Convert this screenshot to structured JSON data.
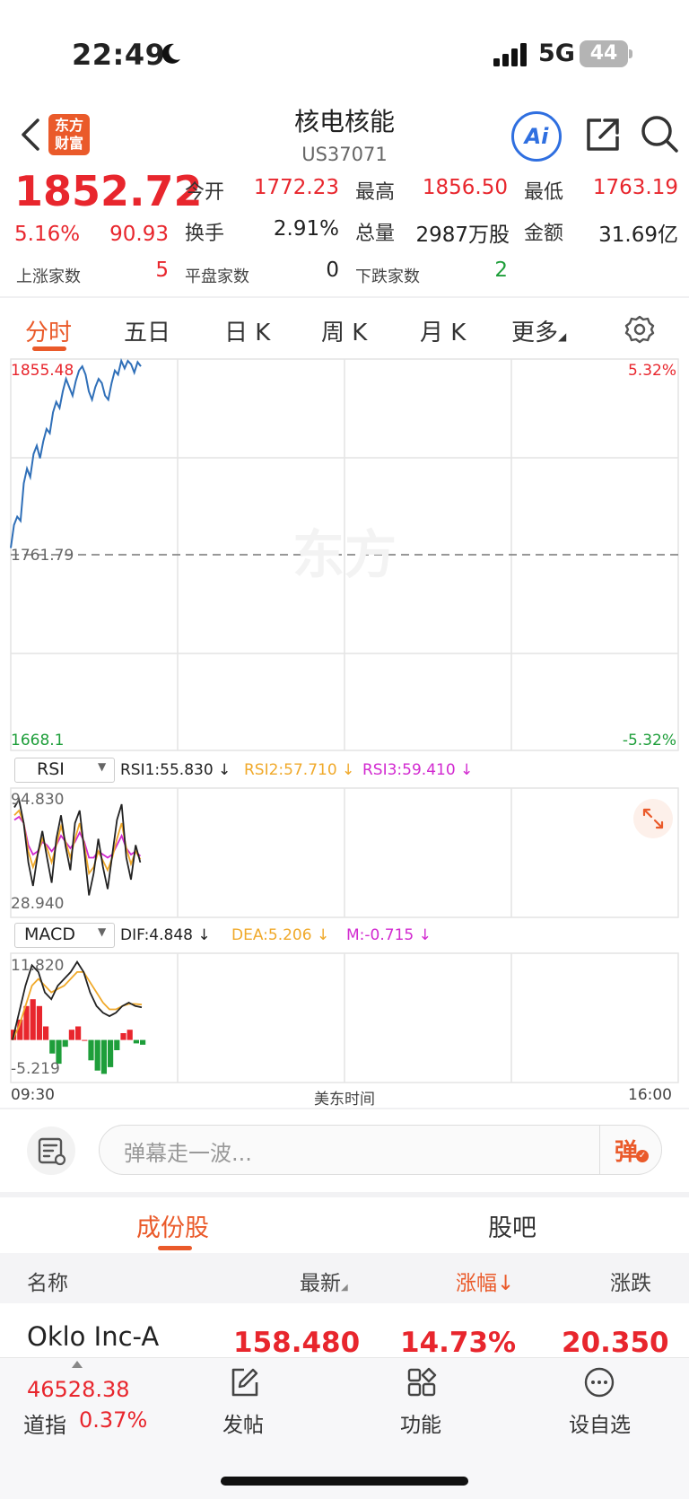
{
  "status": {
    "time": "22:49",
    "network": "5G",
    "battery": "44"
  },
  "header": {
    "title": "核电核能",
    "code": "US37071",
    "logo_line1": "东方",
    "logo_line2": "财富",
    "ai_label": "Ai"
  },
  "quote": {
    "price": "1852.72",
    "change_pct": "5.16%",
    "change": "90.93",
    "open_label": "今开",
    "open": "1772.23",
    "high_label": "最高",
    "high": "1856.50",
    "low_label": "最低",
    "low": "1763.19",
    "turnover_label": "换手",
    "turnover": "2.91%",
    "volume_label": "总量",
    "volume": "2987万股",
    "amount_label": "金额",
    "amount": "31.69亿",
    "up_label": "上涨家数",
    "up": "5",
    "flat_label": "平盘家数",
    "flat": "0",
    "down_label": "下跌家数",
    "down": "2"
  },
  "tabs": [
    "分时",
    "五日",
    "日 K",
    "周 K",
    "月 K",
    "更多"
  ],
  "chart_data": [
    {
      "type": "line",
      "name": "intraday",
      "y_max": 1855.48,
      "y_ref": 1761.79,
      "y_min": 1668.1,
      "pct_max": "5.32%",
      "pct_min": "-5.32%",
      "x_start": "09:30",
      "x_mid": "美东时间",
      "x_end": "16:00",
      "values": [
        1765,
        1776,
        1780,
        1778,
        1796,
        1803,
        1799,
        1810,
        1814,
        1808,
        1816,
        1822,
        1820,
        1830,
        1835,
        1832,
        1840,
        1846,
        1842,
        1838,
        1845,
        1850,
        1852,
        1848,
        1840,
        1836,
        1842,
        1846,
        1844,
        1838,
        1836,
        1844,
        1850,
        1848,
        1855,
        1851,
        1856,
        1853,
        1849,
        1854,
        1852
      ]
    },
    {
      "type": "line",
      "name": "rsi",
      "selector": "RSI",
      "y_max": "94.830",
      "y_min": "28.940",
      "rsi1_label": "RSI1:55.830 ↓",
      "rsi2_label": "RSI2:57.710 ↓",
      "rsi3_label": "RSI3:59.410 ↓",
      "rsi1": [
        90,
        95,
        80,
        55,
        40,
        60,
        75,
        58,
        42,
        70,
        85,
        65,
        50,
        80,
        88,
        62,
        34,
        48,
        70,
        52,
        38,
        60,
        82,
        92,
        58,
        44,
        66,
        55
      ],
      "rsi2": [
        85,
        88,
        80,
        62,
        52,
        60,
        70,
        64,
        55,
        66,
        78,
        68,
        58,
        70,
        80,
        66,
        48,
        52,
        62,
        56,
        50,
        58,
        70,
        80,
        64,
        54,
        62,
        57
      ],
      "rsi3": [
        82,
        84,
        80,
        66,
        60,
        62,
        68,
        66,
        62,
        66,
        72,
        68,
        64,
        68,
        74,
        68,
        58,
        58,
        62,
        60,
        58,
        60,
        66,
        72,
        64,
        60,
        62,
        59
      ]
    },
    {
      "type": "bar",
      "name": "macd",
      "selector": "MACD",
      "y_max": "11.820",
      "y_min": "-5.219",
      "dif_label": "DIF:4.848 ↓",
      "dea_label": "DEA:5.206 ↓",
      "m_label": "M:-0.715 ↓",
      "dif": [
        0,
        4,
        8,
        11,
        10,
        7,
        6,
        8,
        9,
        10,
        11.5,
        10,
        7,
        5,
        4,
        3.5,
        4,
        5,
        5.5,
        5,
        4.8
      ],
      "dea": [
        0,
        2,
        5,
        8,
        9,
        8,
        7,
        7.5,
        8,
        9,
        10,
        10,
        8.5,
        7,
        5.5,
        4.5,
        4.5,
        5,
        5.3,
        5.3,
        5.2
      ],
      "m": [
        1.5,
        3,
        5,
        6,
        5,
        2,
        -2,
        -3.5,
        -1,
        1.5,
        2,
        0,
        -3,
        -4.5,
        -5,
        -4,
        -1.5,
        1,
        1.5,
        -0.5,
        -0.7
      ]
    }
  ],
  "comment": {
    "placeholder": "弹幕走一波...",
    "dan": "弹"
  },
  "section": {
    "tab1": "成份股",
    "tab2": "股吧"
  },
  "table": {
    "headers": [
      "名称",
      "最新",
      "涨幅↓",
      "涨跌"
    ],
    "rows": [
      {
        "name": "Oklo Inc-A",
        "last": "158.480",
        "pct": "14.73%",
        "chg": "20.350"
      }
    ]
  },
  "bottom": {
    "index_value": "46528.38",
    "index_name": "道指",
    "index_change": "0.37%",
    "nav": [
      "发帖",
      "功能",
      "设自选"
    ]
  },
  "colors": {
    "up": "#e8262d",
    "down": "#1e9e3a",
    "accent": "#ea5a2a",
    "line": "#2f6fb8"
  }
}
